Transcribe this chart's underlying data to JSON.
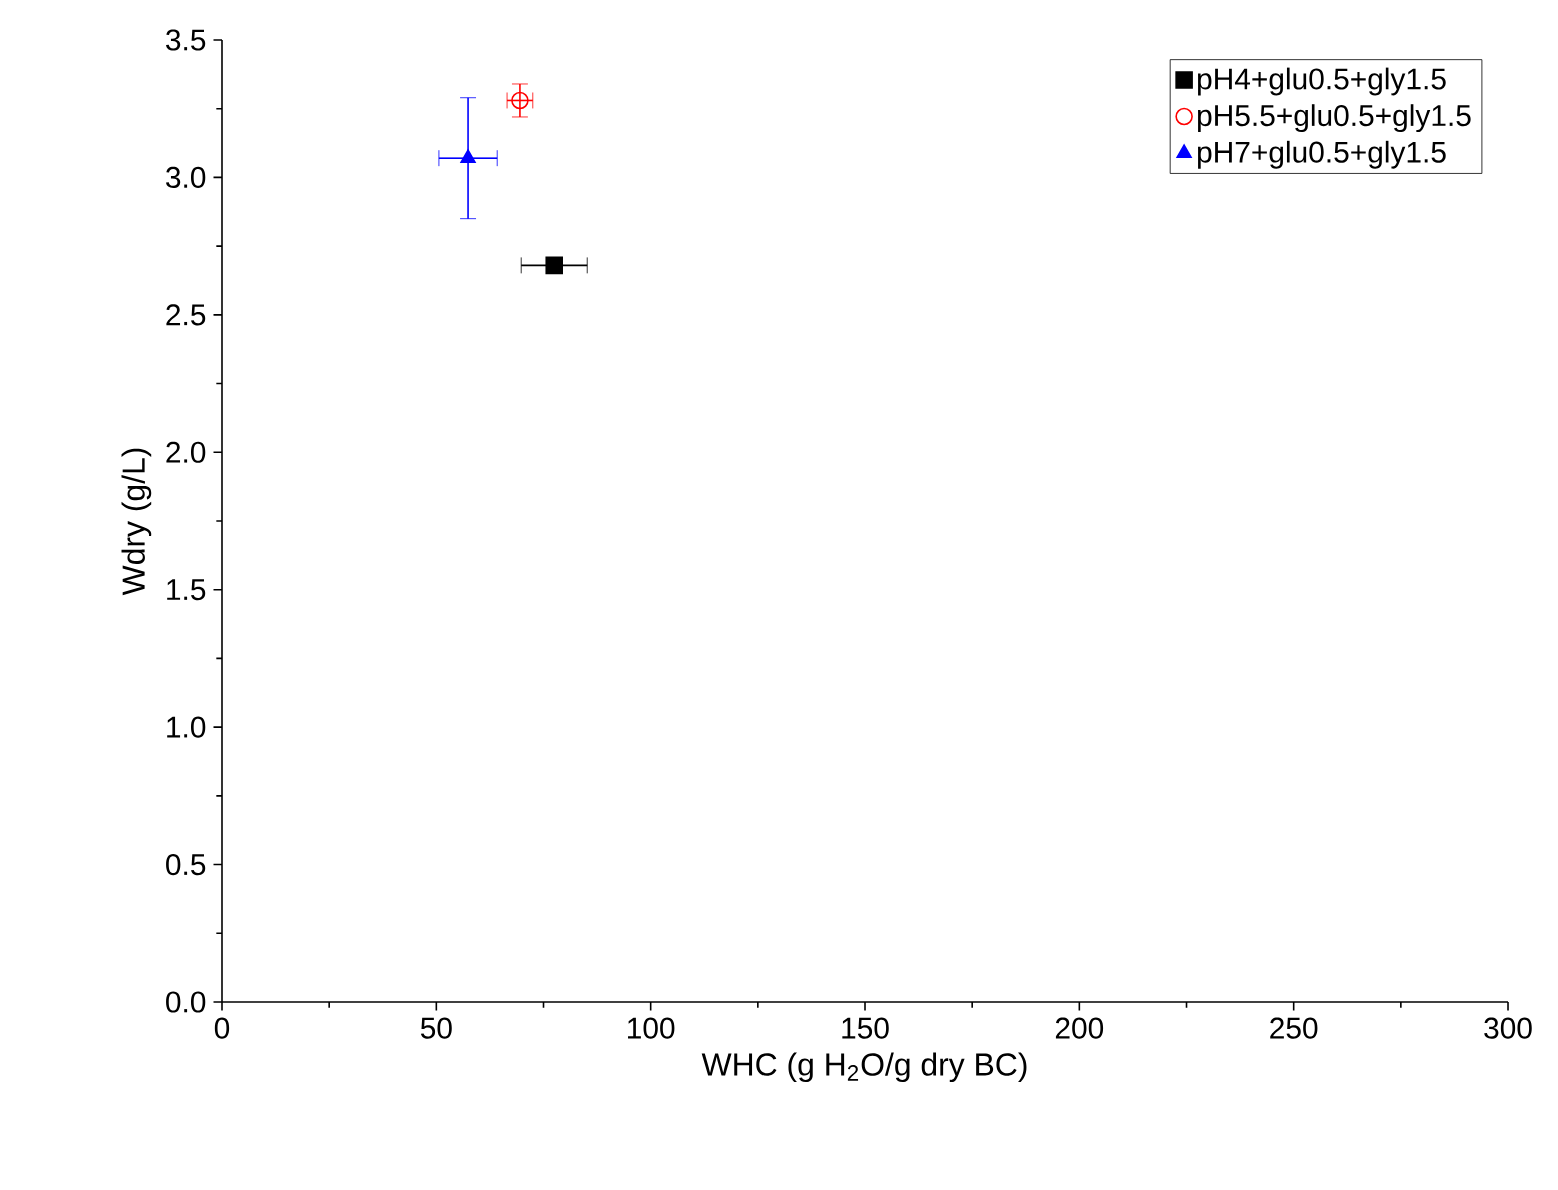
{
  "chart_data": {
    "type": "scatter",
    "xlabel": "WHC (g H$_{2}$O/g dry BC)",
    "ylabel": "Wdry (g/L)",
    "series": [
      {
        "name": "pH4+glu0.5+gly1.5",
        "color": "#000000",
        "marker": "square",
        "x": [
          77.5
        ],
        "values": [
          2.68
        ],
        "errors": [
          0.02
        ],
        "xerrors": [
          7.7
        ]
      },
      {
        "name": "pH5.5+glu0.5+gly1.5",
        "color": "#ff0000",
        "marker": "circle",
        "x": [
          69.5
        ],
        "values": [
          3.28
        ],
        "errors": [
          0.06
        ],
        "xerrors": [
          3
        ]
      },
      {
        "name": "pH7+glu0.5+gly1.5",
        "color": "#0000ff",
        "marker": "triangle",
        "x": [
          57.4
        ],
        "values": [
          3.07
        ],
        "errors": [
          0.22
        ],
        "xerrors": [
          6.8
        ]
      }
    ],
    "xlim": [
      0,
      300
    ],
    "xticks": [
      0,
      50,
      100,
      150,
      200,
      250,
      300
    ],
    "ylim": [
      0,
      3.5
    ],
    "yticks": [
      {
        "value": 0,
        "label": "0.0"
      },
      0.5,
      {
        "value": 1,
        "label": "1.0"
      },
      1.5,
      {
        "value": 2,
        "label": "2.0"
      },
      2.5,
      {
        "value": 3,
        "label": "3.0"
      },
      3.5
    ],
    "grid": false,
    "legend": "top right"
  }
}
